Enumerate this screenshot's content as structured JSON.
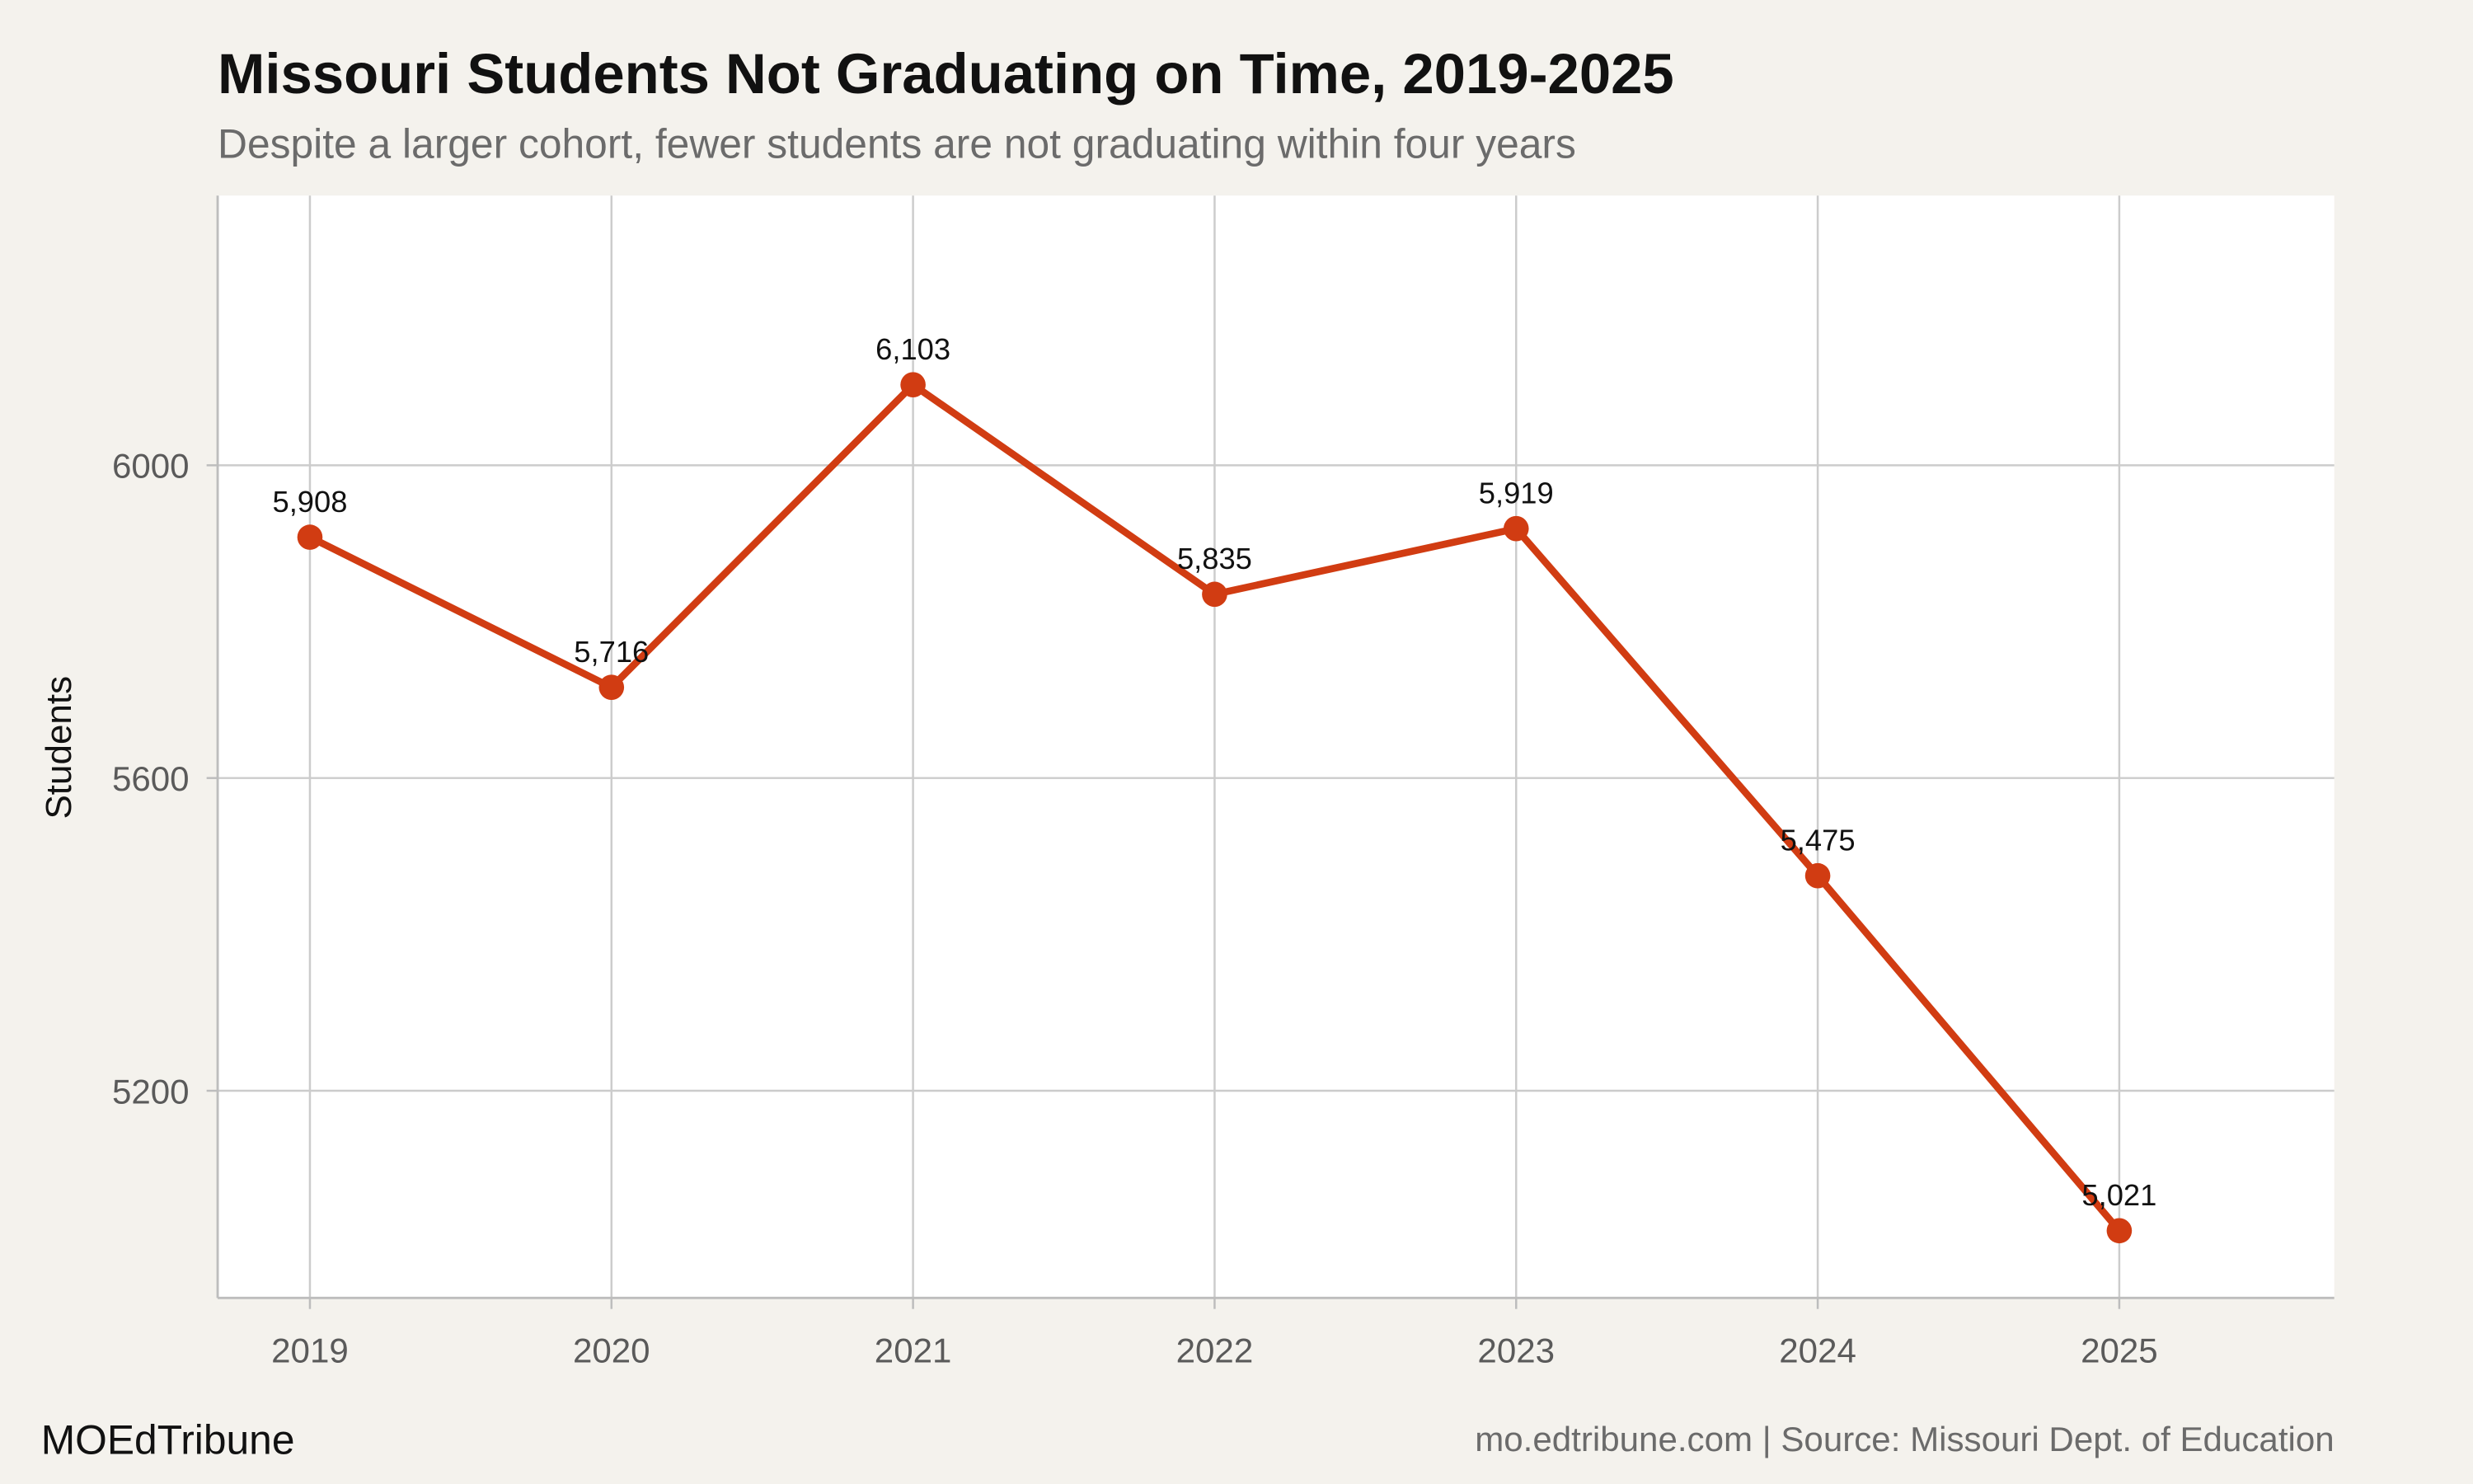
{
  "chart_data": {
    "type": "line",
    "title": "Missouri Students Not Graduating on Time, 2019-2025",
    "subtitle": "Despite a larger cohort, fewer students are not graduating within four years",
    "xlabel": "",
    "ylabel": "Students",
    "x": [
      "2019",
      "2020",
      "2021",
      "2022",
      "2023",
      "2024",
      "2025"
    ],
    "series": [
      {
        "values": [
          5908,
          5716,
          6103,
          5835,
          5919,
          5475,
          5021
        ],
        "labels": [
          "5,908",
          "5,716",
          "6,103",
          "5,835",
          "5,919",
          "5,475",
          "5,021"
        ]
      }
    ],
    "y_ticks": [
      "5200",
      "5600",
      "6000"
    ],
    "y_tick_values": [
      5200,
      5600,
      6000
    ],
    "ylim": [
      4935,
      6345
    ],
    "grid": true,
    "legend": "none",
    "colors": {
      "line": "#d13c12",
      "background": "#f4f2ed",
      "panel": "#ffffff",
      "grid": "#cccccc"
    }
  },
  "footer": {
    "brand": "MOEdTribune",
    "caption": "mo.edtribune.com | Source: Missouri Dept. of Education"
  }
}
